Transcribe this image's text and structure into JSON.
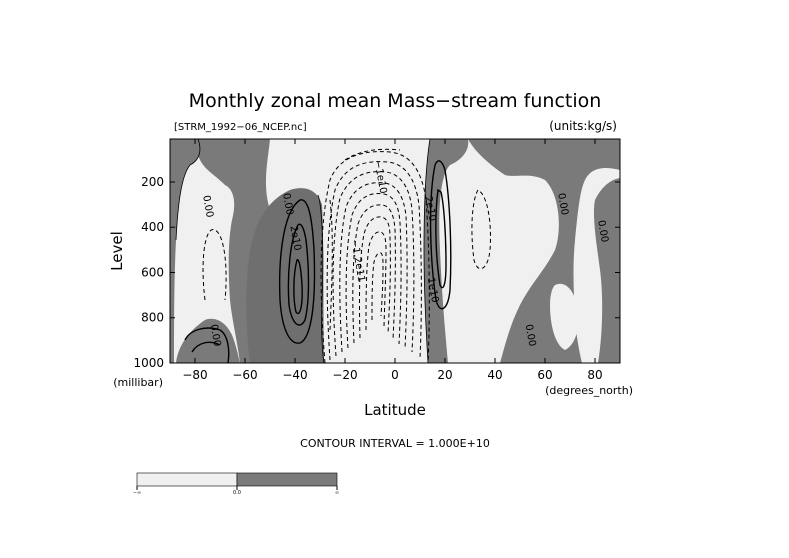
{
  "chart_data": {
    "type": "contour",
    "title": "Monthly zonal mean Mass−stream function",
    "subtitle_left": "[STRM_1992−06_NCEP.nc]",
    "subtitle_right": "(units:kg/s)",
    "xlabel": "Latitude",
    "ylabel": "Level",
    "x_unit": "(degrees_north)",
    "y_unit": "(millibar)",
    "xlim": [
      -90,
      90
    ],
    "ylim": [
      1000,
      10
    ],
    "y_reversed": true,
    "x_ticks": [
      -80,
      -60,
      -40,
      -20,
      0,
      20,
      40,
      60,
      80
    ],
    "x_tick_labels": [
      "−80",
      "−60",
      "−40",
      "−20",
      "0",
      "20",
      "40",
      "60",
      "80"
    ],
    "y_ticks": [
      200,
      400,
      600,
      800,
      1000
    ],
    "y_tick_labels": [
      "200",
      "400",
      "600",
      "800",
      "1000"
    ],
    "contour_interval_text": "CONTOUR INTERVAL = 1.000E+10",
    "contour_labels": [
      {
        "text": "0.00",
        "lat": -76,
        "lev": 310
      },
      {
        "text": "0.00",
        "lat": -44,
        "lev": 300
      },
      {
        "text": "2e10",
        "lat": -41,
        "lev": 450
      },
      {
        "text": "−1.2e11",
        "lat": -16,
        "lev": 550
      },
      {
        "text": "−1e10",
        "lat": -7,
        "lev": 180
      },
      {
        "text": "2e10",
        "lat": 13,
        "lev": 320
      },
      {
        "text": "1e10",
        "lat": 14,
        "lev": 680
      },
      {
        "text": "0.00",
        "lat": -73,
        "lev": 880
      },
      {
        "text": "0.00",
        "lat": 53,
        "lev": 880
      },
      {
        "text": "0.00",
        "lat": 66,
        "lev": 300
      },
      {
        "text": "0.00",
        "lat": 82,
        "lev": 420
      }
    ],
    "shading": {
      "negative_color": "#f0f0f0",
      "positive_color": "#7a7a7a",
      "threshold": 0
    },
    "colorbar": {
      "labels": [
        "−∞",
        "0.0",
        "∞"
      ],
      "colors": [
        "#f0f0f0",
        "#7a7a7a"
      ]
    },
    "grid": false
  }
}
